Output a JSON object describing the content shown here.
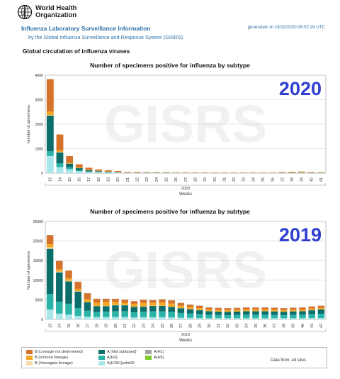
{
  "header": {
    "org_line1": "World Health",
    "org_line2": "Organization",
    "app_title": "Influenza Laboratory Surveillance Information",
    "app_subtitle": "by the Global Influenza Surveillance and Response System (GISRS)",
    "generated": "generated on 16/10/2020 05:52:29 UTC"
  },
  "section_title": "Global circulation of influenza viruses",
  "watermark": "GISRS",
  "colors": {
    "B (Lineage not determined)": "#d5732c",
    "B (Victoria lineage)": "#f5a623",
    "B (Yamagata lineage)": "#f7d9a8",
    "A (Not subtyped)": "#0c6e6a",
    "A(H3)": "#2cb3a8",
    "A(H1N1)pdm09": "#a8e6ea",
    "A(H1)": "#a3a3a3",
    "A(H5)": "#7dcc29"
  },
  "legend": {
    "items": [
      "B (Lineage not determined)",
      "B (Victoria lineage)",
      "B (Yamagata lineage)",
      "A (Not subtyped)",
      "A(H3)",
      "A(H1N1)pdm09",
      "A(H1)",
      "A(H5)"
    ]
  },
  "data_from": "Data from: All sites",
  "chart_data": [
    {
      "type": "bar",
      "stacked": true,
      "title": "Number of specimens positive for influenza by subtype",
      "year_label": "2020",
      "xlabel": "Weeks",
      "ylabel": "Number of specimens",
      "year_axis_label": "2020",
      "ylim": [
        0,
        4000
      ],
      "yticks": [
        0,
        1000,
        2000,
        3000,
        4000
      ],
      "grid": true,
      "categories": [
        "13",
        "14",
        "15",
        "16",
        "17",
        "18",
        "19",
        "20",
        "21",
        "22",
        "23",
        "24",
        "25",
        "26",
        "27",
        "28",
        "29",
        "30",
        "31",
        "32",
        "33",
        "34",
        "35",
        "36",
        "37",
        "38",
        "39",
        "40",
        "41"
      ],
      "series": [
        {
          "name": "A(H1N1)pdm09",
          "values": [
            700,
            250,
            160,
            80,
            50,
            40,
            30,
            25,
            15,
            12,
            10,
            10,
            10,
            8,
            8,
            8,
            8,
            6,
            6,
            6,
            6,
            6,
            6,
            6,
            8,
            8,
            10,
            6,
            6
          ]
        },
        {
          "name": "A(H3)",
          "values": [
            200,
            150,
            80,
            40,
            20,
            15,
            10,
            8,
            5,
            5,
            4,
            4,
            4,
            3,
            3,
            3,
            3,
            3,
            3,
            3,
            3,
            3,
            3,
            3,
            4,
            5,
            6,
            4,
            4
          ]
        },
        {
          "name": "A (Not subtyped)",
          "values": [
            1450,
            450,
            150,
            90,
            50,
            30,
            25,
            15,
            8,
            8,
            6,
            6,
            6,
            6,
            5,
            5,
            5,
            5,
            5,
            5,
            5,
            5,
            5,
            5,
            8,
            10,
            12,
            10,
            8
          ]
        },
        {
          "name": "B (Yamagata lineage)",
          "values": [
            20,
            10,
            5,
            3,
            2,
            2,
            1,
            1,
            1,
            1,
            1,
            1,
            1,
            1,
            1,
            1,
            1,
            1,
            1,
            1,
            1,
            1,
            1,
            1,
            1,
            1,
            1,
            1,
            1
          ]
        },
        {
          "name": "B (Victoria lineage)",
          "values": [
            150,
            70,
            40,
            20,
            12,
            8,
            6,
            5,
            3,
            3,
            2,
            2,
            2,
            2,
            2,
            2,
            2,
            2,
            2,
            2,
            2,
            2,
            2,
            2,
            3,
            4,
            5,
            3,
            3
          ]
        },
        {
          "name": "B (Lineage not determined)",
          "values": [
            1320,
            650,
            260,
            130,
            90,
            60,
            50,
            35,
            20,
            18,
            15,
            14,
            14,
            12,
            12,
            12,
            12,
            12,
            12,
            12,
            12,
            12,
            12,
            12,
            18,
            25,
            30,
            20,
            16
          ]
        },
        {
          "name": "A(H1)",
          "values": [
            0,
            0,
            0,
            0,
            0,
            0,
            0,
            0,
            0,
            0,
            0,
            0,
            0,
            0,
            0,
            0,
            0,
            0,
            0,
            0,
            0,
            0,
            0,
            0,
            0,
            0,
            0,
            0,
            0
          ]
        },
        {
          "name": "A(H5)",
          "values": [
            0,
            0,
            0,
            0,
            0,
            0,
            0,
            0,
            0,
            0,
            0,
            0,
            0,
            0,
            0,
            0,
            0,
            0,
            0,
            0,
            0,
            0,
            0,
            0,
            0,
            0,
            0,
            0,
            0
          ]
        }
      ]
    },
    {
      "type": "bar",
      "stacked": true,
      "title": "Number of specimens positive for influenza by subtype",
      "year_label": "2019",
      "xlabel": "Weeks",
      "ylabel": "Number of specimens",
      "year_axis_label": "2019",
      "ylim": [
        0,
        25000
      ],
      "yticks": [
        0,
        5000,
        10000,
        15000,
        20000,
        25000
      ],
      "grid": true,
      "categories": [
        "13",
        "14",
        "15",
        "16",
        "17",
        "18",
        "19",
        "20",
        "21",
        "22",
        "23",
        "24",
        "25",
        "26",
        "27",
        "28",
        "29",
        "30",
        "31",
        "32",
        "33",
        "34",
        "35",
        "36",
        "37",
        "38",
        "39",
        "40",
        "41",
        "42"
      ],
      "series": [
        {
          "name": "A(H1N1)pdm09",
          "values": [
            2500,
            1500,
            1200,
            900,
            700,
            600,
            600,
            600,
            600,
            500,
            550,
            550,
            550,
            500,
            450,
            400,
            350,
            300,
            300,
            300,
            300,
            300,
            300,
            300,
            300,
            300,
            300,
            300,
            350,
            350
          ]
        },
        {
          "name": "A(H3)",
          "values": [
            4000,
            3000,
            2800,
            2000,
            1500,
            1300,
            1400,
            1500,
            1500,
            1300,
            1400,
            1500,
            1500,
            1400,
            1200,
            1100,
            1000,
            900,
            850,
            800,
            850,
            900,
            900,
            900,
            850,
            800,
            850,
            900,
            1000,
            1100
          ]
        },
        {
          "name": "A (Not subtyped)",
          "values": [
            11500,
            7500,
            5700,
            4200,
            2200,
            1500,
            1400,
            1500,
            1500,
            1400,
            1300,
            1400,
            1400,
            1300,
            1200,
            1100,
            1000,
            900,
            850,
            850,
            850,
            900,
            900,
            900,
            900,
            850,
            900,
            900,
            1000,
            1100
          ]
        },
        {
          "name": "B (Yamagata lineage)",
          "values": [
            400,
            200,
            150,
            100,
            80,
            60,
            60,
            60,
            60,
            50,
            50,
            50,
            50,
            50,
            40,
            40,
            40,
            30,
            30,
            30,
            30,
            30,
            30,
            30,
            30,
            30,
            30,
            30,
            30,
            30
          ]
        },
        {
          "name": "B (Victoria lineage)",
          "values": [
            800,
            600,
            600,
            600,
            700,
            800,
            1000,
            800,
            600,
            700,
            900,
            700,
            800,
            800,
            600,
            500,
            500,
            400,
            400,
            400,
            400,
            400,
            400,
            400,
            400,
            400,
            400,
            400,
            400,
            400
          ]
        },
        {
          "name": "B (Lineage not determined)",
          "values": [
            2300,
            2100,
            2000,
            1800,
            1500,
            1000,
            800,
            800,
            800,
            700,
            800,
            700,
            800,
            800,
            700,
            600,
            600,
            500,
            500,
            500,
            500,
            500,
            500,
            500,
            500,
            500,
            500,
            500,
            500,
            500
          ]
        },
        {
          "name": "A(H1)",
          "values": [
            50,
            40,
            40,
            30,
            30,
            20,
            20,
            20,
            20,
            20,
            20,
            20,
            20,
            20,
            20,
            20,
            20,
            20,
            20,
            20,
            20,
            20,
            20,
            20,
            20,
            20,
            20,
            20,
            20,
            20
          ]
        },
        {
          "name": "A(H5)",
          "values": [
            0,
            0,
            0,
            0,
            0,
            0,
            0,
            0,
            0,
            0,
            0,
            0,
            0,
            0,
            0,
            0,
            0,
            0,
            0,
            0,
            0,
            0,
            0,
            0,
            0,
            0,
            0,
            0,
            0,
            0
          ]
        }
      ]
    }
  ]
}
